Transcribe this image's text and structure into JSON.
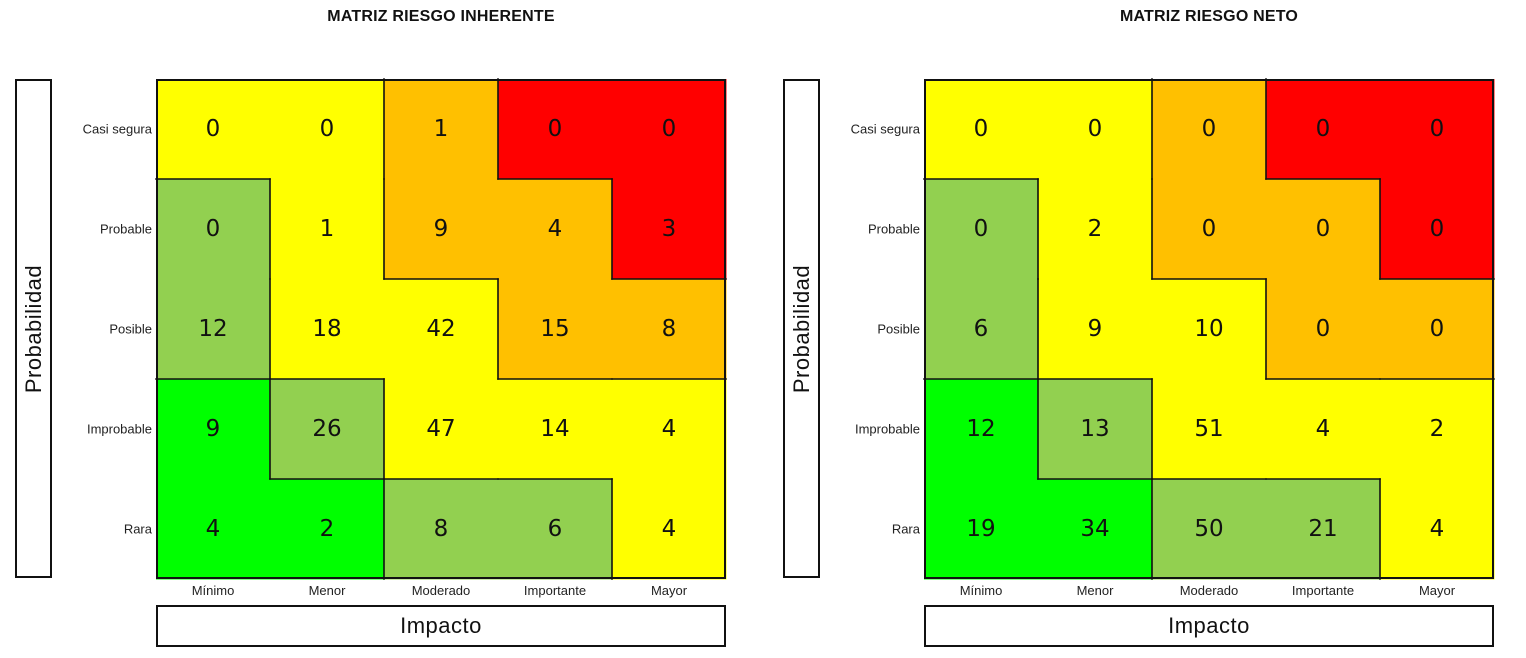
{
  "colors": {
    "green": "#00ff00",
    "light_green": "#92d050",
    "yellow": "#ffff00",
    "orange": "#ffc000",
    "red": "#ff0000"
  },
  "chart_data": [
    {
      "type": "heatmap",
      "title": "MATRIZ RIESGO INHERENTE",
      "xlabel": "Impacto",
      "ylabel": "Probabilidad",
      "x_categories": [
        "Mínimo",
        "Menor",
        "Moderado",
        "Importante",
        "Mayor"
      ],
      "y_categories": [
        "Casi segura",
        "Probable",
        "Posible",
        "Improbable",
        "Rara"
      ],
      "values": [
        [
          0,
          0,
          1,
          0,
          0
        ],
        [
          0,
          1,
          9,
          4,
          3
        ],
        [
          12,
          18,
          42,
          15,
          8
        ],
        [
          9,
          26,
          47,
          14,
          4
        ],
        [
          4,
          2,
          8,
          6,
          4
        ]
      ],
      "cell_colors": [
        [
          "yellow",
          "yellow",
          "orange",
          "red",
          "red"
        ],
        [
          "light_green",
          "yellow",
          "orange",
          "orange",
          "red"
        ],
        [
          "light_green",
          "yellow",
          "yellow",
          "orange",
          "orange"
        ],
        [
          "green",
          "light_green",
          "yellow",
          "yellow",
          "yellow"
        ],
        [
          "green",
          "green",
          "light_green",
          "light_green",
          "yellow"
        ]
      ]
    },
    {
      "type": "heatmap",
      "title": "MATRIZ RIESGO NETO",
      "xlabel": "Impacto",
      "ylabel": "Probabilidad",
      "x_categories": [
        "Mínimo",
        "Menor",
        "Moderado",
        "Importante",
        "Mayor"
      ],
      "y_categories": [
        "Casi segura",
        "Probable",
        "Posible",
        "Improbable",
        "Rara"
      ],
      "values": [
        [
          0,
          0,
          0,
          0,
          0
        ],
        [
          0,
          2,
          0,
          0,
          0
        ],
        [
          6,
          9,
          10,
          0,
          0
        ],
        [
          12,
          13,
          51,
          4,
          2
        ],
        [
          19,
          34,
          50,
          21,
          4
        ]
      ],
      "cell_colors": [
        [
          "yellow",
          "yellow",
          "orange",
          "red",
          "red"
        ],
        [
          "light_green",
          "yellow",
          "orange",
          "orange",
          "red"
        ],
        [
          "light_green",
          "yellow",
          "yellow",
          "orange",
          "orange"
        ],
        [
          "green",
          "light_green",
          "yellow",
          "yellow",
          "yellow"
        ],
        [
          "green",
          "green",
          "light_green",
          "light_green",
          "yellow"
        ]
      ]
    }
  ]
}
